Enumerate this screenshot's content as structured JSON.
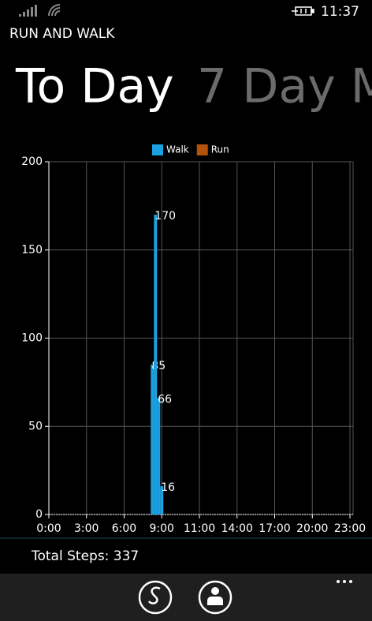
{
  "status_bar": {
    "time": "11:37"
  },
  "app_title": "RUN AND WALK",
  "pivot": {
    "headers": [
      "To Day",
      "7 Day M"
    ]
  },
  "chart_data": {
    "type": "bar",
    "x": [
      33,
      34,
      35,
      36
    ],
    "xlim": [
      0,
      97
    ],
    "xticks": [
      {
        "value": 0,
        "label": "0:00"
      },
      {
        "value": 12,
        "label": "3:00"
      },
      {
        "value": 24,
        "label": "6:00"
      },
      {
        "value": 36,
        "label": "9:00"
      },
      {
        "value": 48,
        "label": "11:00"
      },
      {
        "value": 60,
        "label": "14:00"
      },
      {
        "value": 72,
        "label": "17:00"
      },
      {
        "value": 84,
        "label": "20:00"
      },
      {
        "value": 96,
        "label": "23:00"
      }
    ],
    "ylim": [
      0,
      200
    ],
    "yticks": [
      0,
      50,
      100,
      150,
      200
    ],
    "grid": true,
    "legend": "top",
    "data_labels": true,
    "series": [
      {
        "name": "Walk",
        "color": "#1ba1e2",
        "values": [
          85,
          170,
          66,
          16
        ]
      },
      {
        "name": "Run",
        "color": "#b35309",
        "values": [
          0,
          0,
          0,
          0
        ]
      }
    ]
  },
  "summary": "Total Steps: 337"
}
